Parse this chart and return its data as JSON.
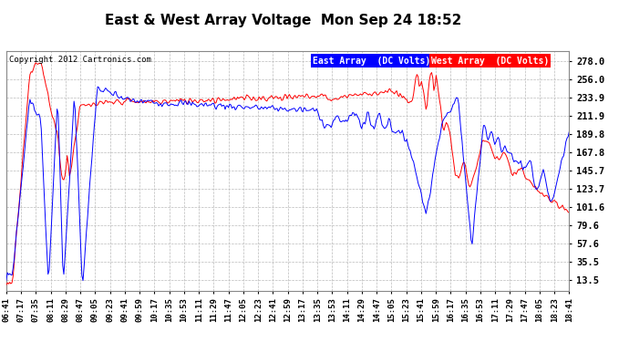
{
  "title": "East & West Array Voltage  Mon Sep 24 18:52",
  "copyright": "Copyright 2012 Cartronics.com",
  "legend_east": "East Array  (DC Volts)",
  "legend_west": "West Array  (DC Volts)",
  "east_color": "#0000ff",
  "west_color": "#ff0000",
  "background_color": "#ffffff",
  "plot_bg_color": "#ffffff",
  "grid_color": "#bbbbbb",
  "yticks": [
    13.5,
    35.5,
    57.6,
    79.6,
    101.6,
    123.7,
    145.7,
    167.8,
    189.8,
    211.9,
    233.9,
    256.0,
    278.0
  ],
  "ymin": 0,
  "ymax": 290,
  "xlabel_fontsize": 6.5,
  "ylabel_fontsize": 7.5,
  "title_fontsize": 11,
  "x_labels": [
    "06:41",
    "07:17",
    "07:35",
    "08:11",
    "08:29",
    "08:47",
    "09:05",
    "09:23",
    "09:41",
    "09:59",
    "10:17",
    "10:35",
    "10:53",
    "11:11",
    "11:29",
    "11:47",
    "12:05",
    "12:23",
    "12:41",
    "12:59",
    "13:17",
    "13:35",
    "13:53",
    "14:11",
    "14:29",
    "14:47",
    "15:05",
    "15:23",
    "15:41",
    "15:59",
    "16:17",
    "16:35",
    "16:53",
    "17:11",
    "17:29",
    "17:47",
    "18:05",
    "18:23",
    "18:41"
  ]
}
